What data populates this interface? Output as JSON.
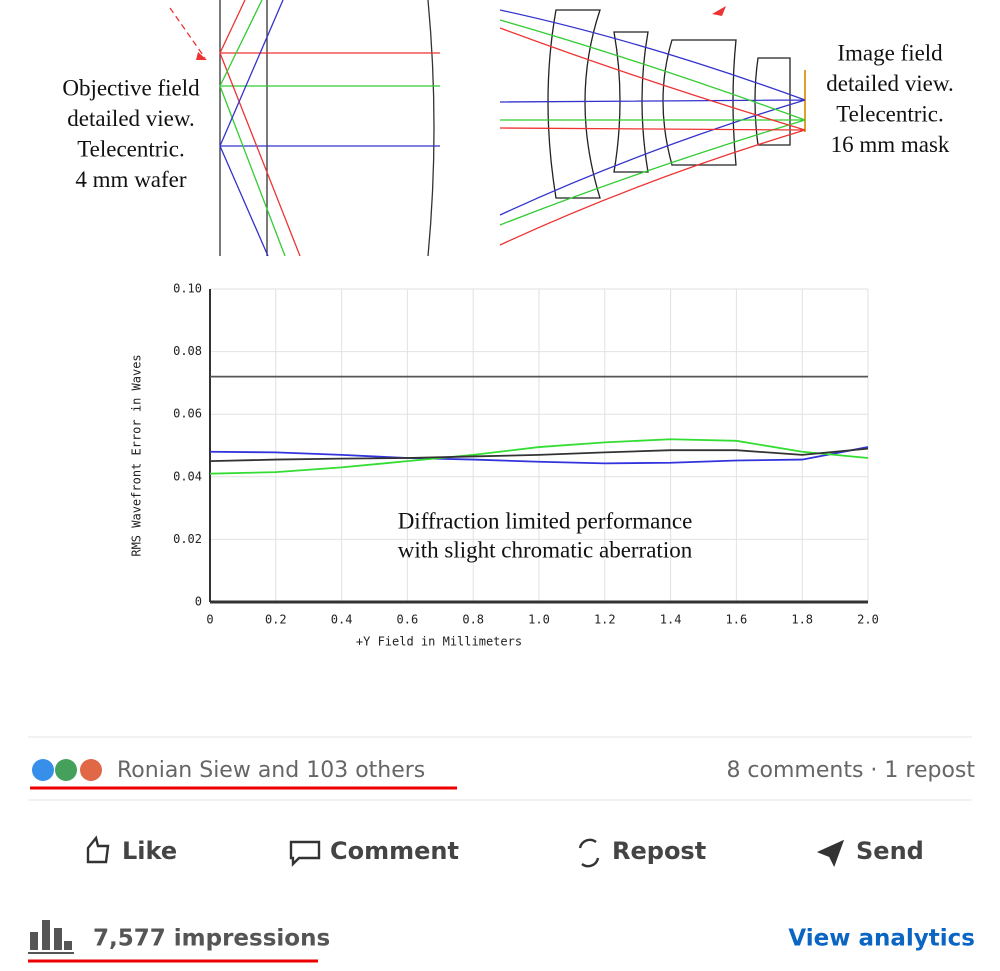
{
  "diagram": {
    "left_label": [
      "Objective field",
      "detailed view.",
      "Telecentric.",
      "4 mm wafer"
    ],
    "right_label": [
      "Image field",
      "detailed view.",
      "Telecentric.",
      "16 mm mask"
    ]
  },
  "chart_data": {
    "type": "line",
    "xlabel": "+Y Field in Millimeters",
    "ylabel": "RMS Wavefront Error in Waves",
    "annotation": [
      "Diffraction limited performance",
      "with slight chromatic aberration"
    ],
    "x": [
      0,
      0.2,
      0.4,
      0.6,
      0.8,
      1.0,
      1.2,
      1.4,
      1.6,
      1.8,
      2.0
    ],
    "series": [
      {
        "color": "#555555",
        "values": [
          0.072,
          0.072,
          0.072,
          0.072,
          0.072,
          0.072,
          0.072,
          0.072,
          0.072,
          0.072,
          0.072
        ]
      },
      {
        "color": "#3333dd",
        "values": [
          0.048,
          0.0478,
          0.047,
          0.046,
          0.0455,
          0.0448,
          0.0443,
          0.0445,
          0.0452,
          0.0455,
          0.0495
        ]
      },
      {
        "color": "#33dd33",
        "values": [
          0.041,
          0.0415,
          0.043,
          0.045,
          0.047,
          0.0495,
          0.051,
          0.052,
          0.0515,
          0.048,
          0.046
        ]
      },
      {
        "color": "#333333",
        "values": [
          0.045,
          0.0455,
          0.0458,
          0.046,
          0.0465,
          0.047,
          0.0478,
          0.0485,
          0.0485,
          0.047,
          0.049
        ]
      }
    ],
    "xlim": [
      0,
      2.0
    ],
    "ylim": [
      0,
      0.1
    ],
    "xticks": [
      0,
      0.2,
      0.4,
      0.6,
      0.8,
      {
        "value": 1,
        "label": "1.0"
      },
      1.2,
      1.4,
      1.6,
      1.8,
      {
        "value": 2,
        "label": "2.0"
      }
    ],
    "yticks": [
      0,
      0.02,
      0.04,
      0.06,
      0.08,
      {
        "value": 0.1,
        "label": "0.10"
      }
    ],
    "grid": true
  },
  "post": {
    "reactions": "Ronian Siew and 103 others",
    "stats": "8 comments · 1 repost",
    "actions": [
      "Like",
      "Comment",
      "Repost",
      "Send"
    ],
    "impressions": "7,577 impressions",
    "analytics": "View analytics"
  }
}
